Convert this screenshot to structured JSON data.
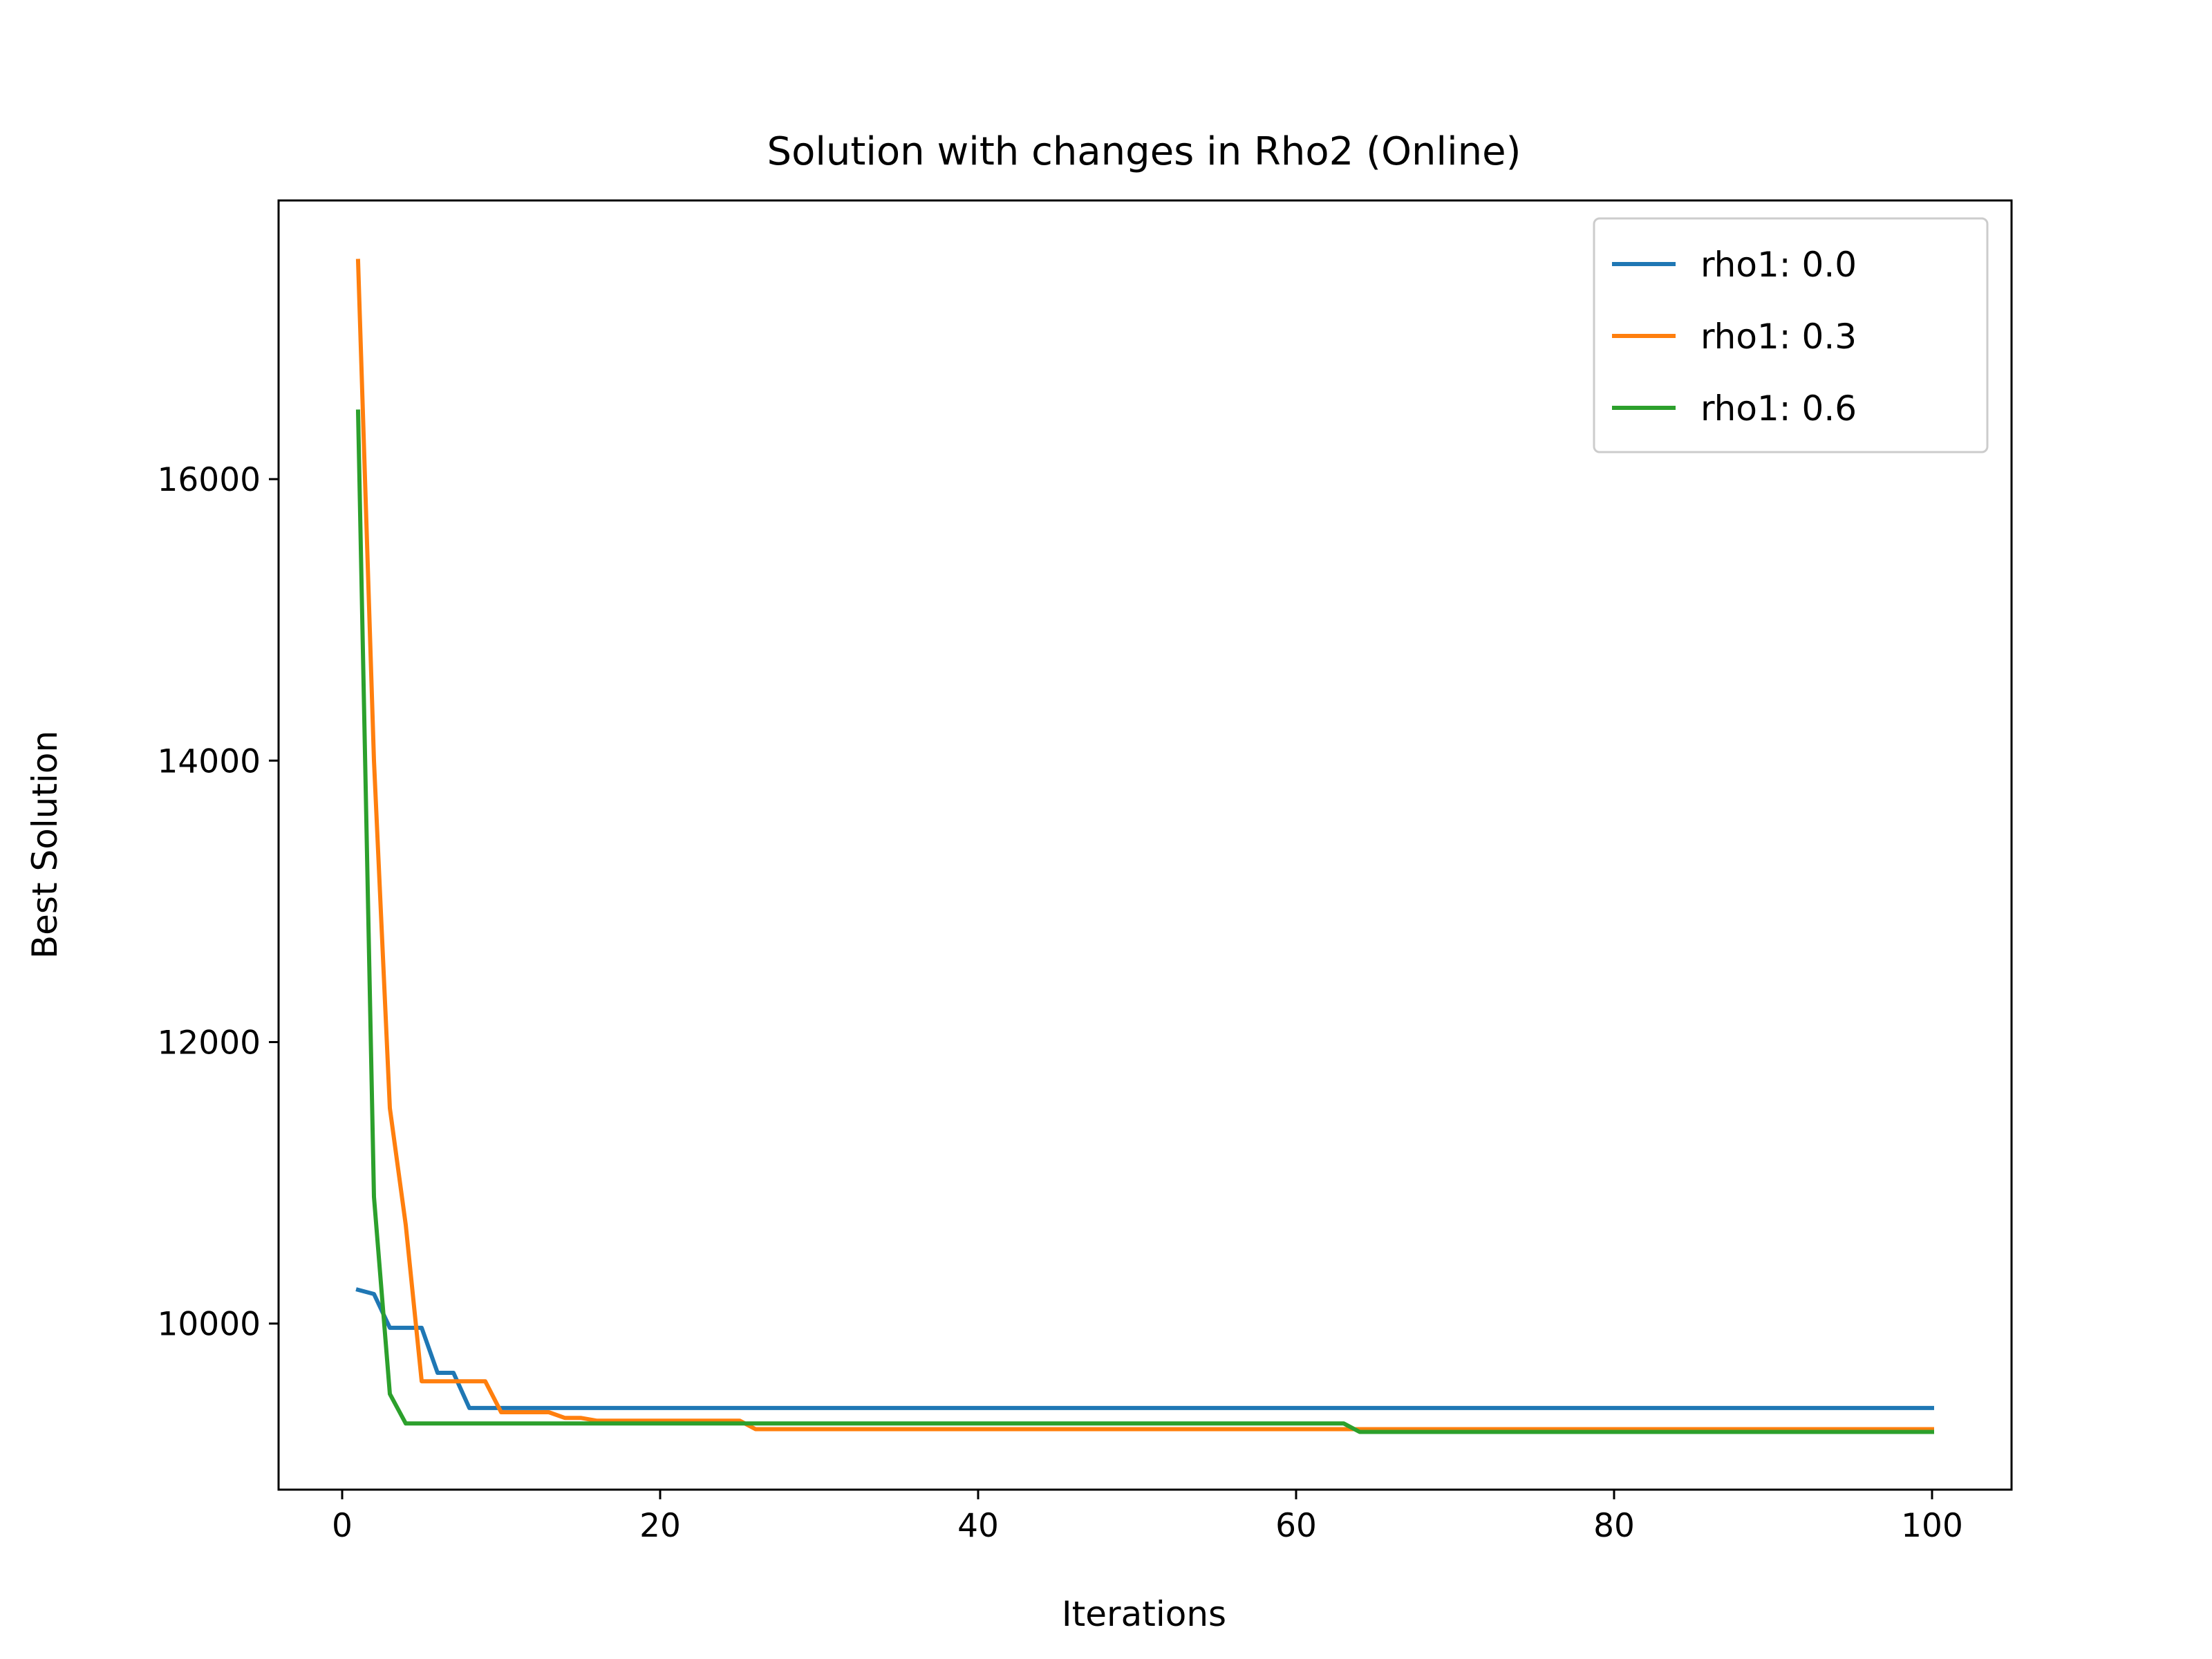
{
  "chart_data": {
    "type": "line",
    "title": "Solution with changes in Rho2 (Online)",
    "xlabel": "Iterations",
    "ylabel": "Best Solution",
    "xlim": [
      -4.0,
      105.0
    ],
    "ylim": [
      8820,
      17980
    ],
    "xticks": [
      0,
      20,
      40,
      60,
      80,
      100
    ],
    "xtick_labels": [
      "0",
      "20",
      "40",
      "60",
      "80",
      "100"
    ],
    "yticks": [
      10000,
      12000,
      14000,
      16000
    ],
    "ytick_labels": [
      "10000",
      "12000",
      "14000",
      "16000"
    ],
    "grid": false,
    "legend_position": "top-right",
    "series": [
      {
        "name": "rho1: 0.0",
        "color": "#1f77b4",
        "points": [
          [
            1,
            10240
          ],
          [
            2,
            10210
          ],
          [
            3,
            9970
          ],
          [
            4,
            9970
          ],
          [
            5,
            9970
          ],
          [
            6,
            9650
          ],
          [
            7,
            9650
          ],
          [
            8,
            9400
          ],
          [
            9,
            9400
          ],
          [
            100,
            9400
          ]
        ]
      },
      {
        "name": "rho1: 0.3",
        "color": "#ff7f0e",
        "points": [
          [
            1,
            17550
          ],
          [
            2,
            14000
          ],
          [
            3,
            11530
          ],
          [
            4,
            10700
          ],
          [
            5,
            9590
          ],
          [
            6,
            9590
          ],
          [
            7,
            9590
          ],
          [
            8,
            9590
          ],
          [
            9,
            9590
          ],
          [
            10,
            9370
          ],
          [
            11,
            9370
          ],
          [
            12,
            9370
          ],
          [
            13,
            9370
          ],
          [
            14,
            9330
          ],
          [
            15,
            9330
          ],
          [
            16,
            9310
          ],
          [
            25,
            9310
          ],
          [
            26,
            9250
          ],
          [
            63,
            9250
          ],
          [
            64,
            9250
          ],
          [
            100,
            9250
          ]
        ]
      },
      {
        "name": "rho1: 0.6",
        "color": "#2ca02c",
        "points": [
          [
            1,
            16480
          ],
          [
            2,
            10900
          ],
          [
            3,
            9500
          ],
          [
            4,
            9290
          ],
          [
            5,
            9290
          ],
          [
            63,
            9290
          ],
          [
            64,
            9230
          ],
          [
            100,
            9230
          ]
        ]
      }
    ]
  }
}
